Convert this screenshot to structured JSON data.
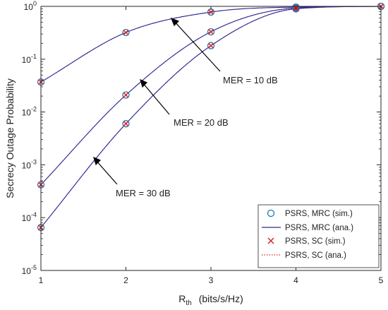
{
  "chart_data": {
    "type": "line",
    "title": "",
    "xlabel": {
      "main": "R",
      "sub": "th",
      "rest": "(bits/s/Hz)"
    },
    "ylabel": "Secrecy Outage Probability",
    "x": [
      1,
      2,
      3,
      4,
      5
    ],
    "xlim": [
      1,
      5
    ],
    "ylim": [
      1e-05,
      1
    ],
    "yscale": "log",
    "x_tick_labels": [
      "1",
      "2",
      "3",
      "4",
      "5"
    ],
    "y_ticks": [
      {
        "base": "10",
        "exp": "0"
      },
      {
        "base": "10",
        "exp": "-1"
      },
      {
        "base": "10",
        "exp": "-2"
      },
      {
        "base": "10",
        "exp": "-3"
      },
      {
        "base": "10",
        "exp": "-4"
      },
      {
        "base": "10",
        "exp": "-5"
      }
    ],
    "grid": false,
    "legend_position": "bottom-right",
    "legend": [
      {
        "label": "PSRS, MRC (sim.)",
        "marker": "circle",
        "color": "#1f77b4"
      },
      {
        "label": "PSRS, MRC (ana.)",
        "line": "solid",
        "color": "#2b2b9e"
      },
      {
        "label": "PSRS, SC (sim.)",
        "marker": "x",
        "color": "#d62728"
      },
      {
        "label": "PSRS, SC (ana.)",
        "line": "dotted",
        "color": "#d62728"
      }
    ],
    "series": [
      {
        "group": "MER = 10 dB",
        "curve": "MRC/SC (ana.)",
        "values": [
          0.037,
          0.32,
          0.78,
          0.97,
          1.0
        ]
      },
      {
        "group": "MER = 20 dB",
        "curve": "MRC/SC (ana.)",
        "values": [
          0.00042,
          0.021,
          0.33,
          0.93,
          1.0
        ]
      },
      {
        "group": "MER = 30 dB",
        "curve": "MRC/SC (ana.)",
        "values": [
          6.5e-05,
          0.006,
          0.18,
          0.9,
          1.0
        ]
      }
    ],
    "annotations": [
      {
        "text": "MER = 10 dB"
      },
      {
        "text": "MER = 20 dB"
      },
      {
        "text": "MER = 30 dB"
      }
    ],
    "colors": {
      "mrc_circle": "#1f77b4",
      "mrc_line": "#2b2b9e",
      "sc_x": "#d62728",
      "sc_line": "#d62728"
    }
  }
}
